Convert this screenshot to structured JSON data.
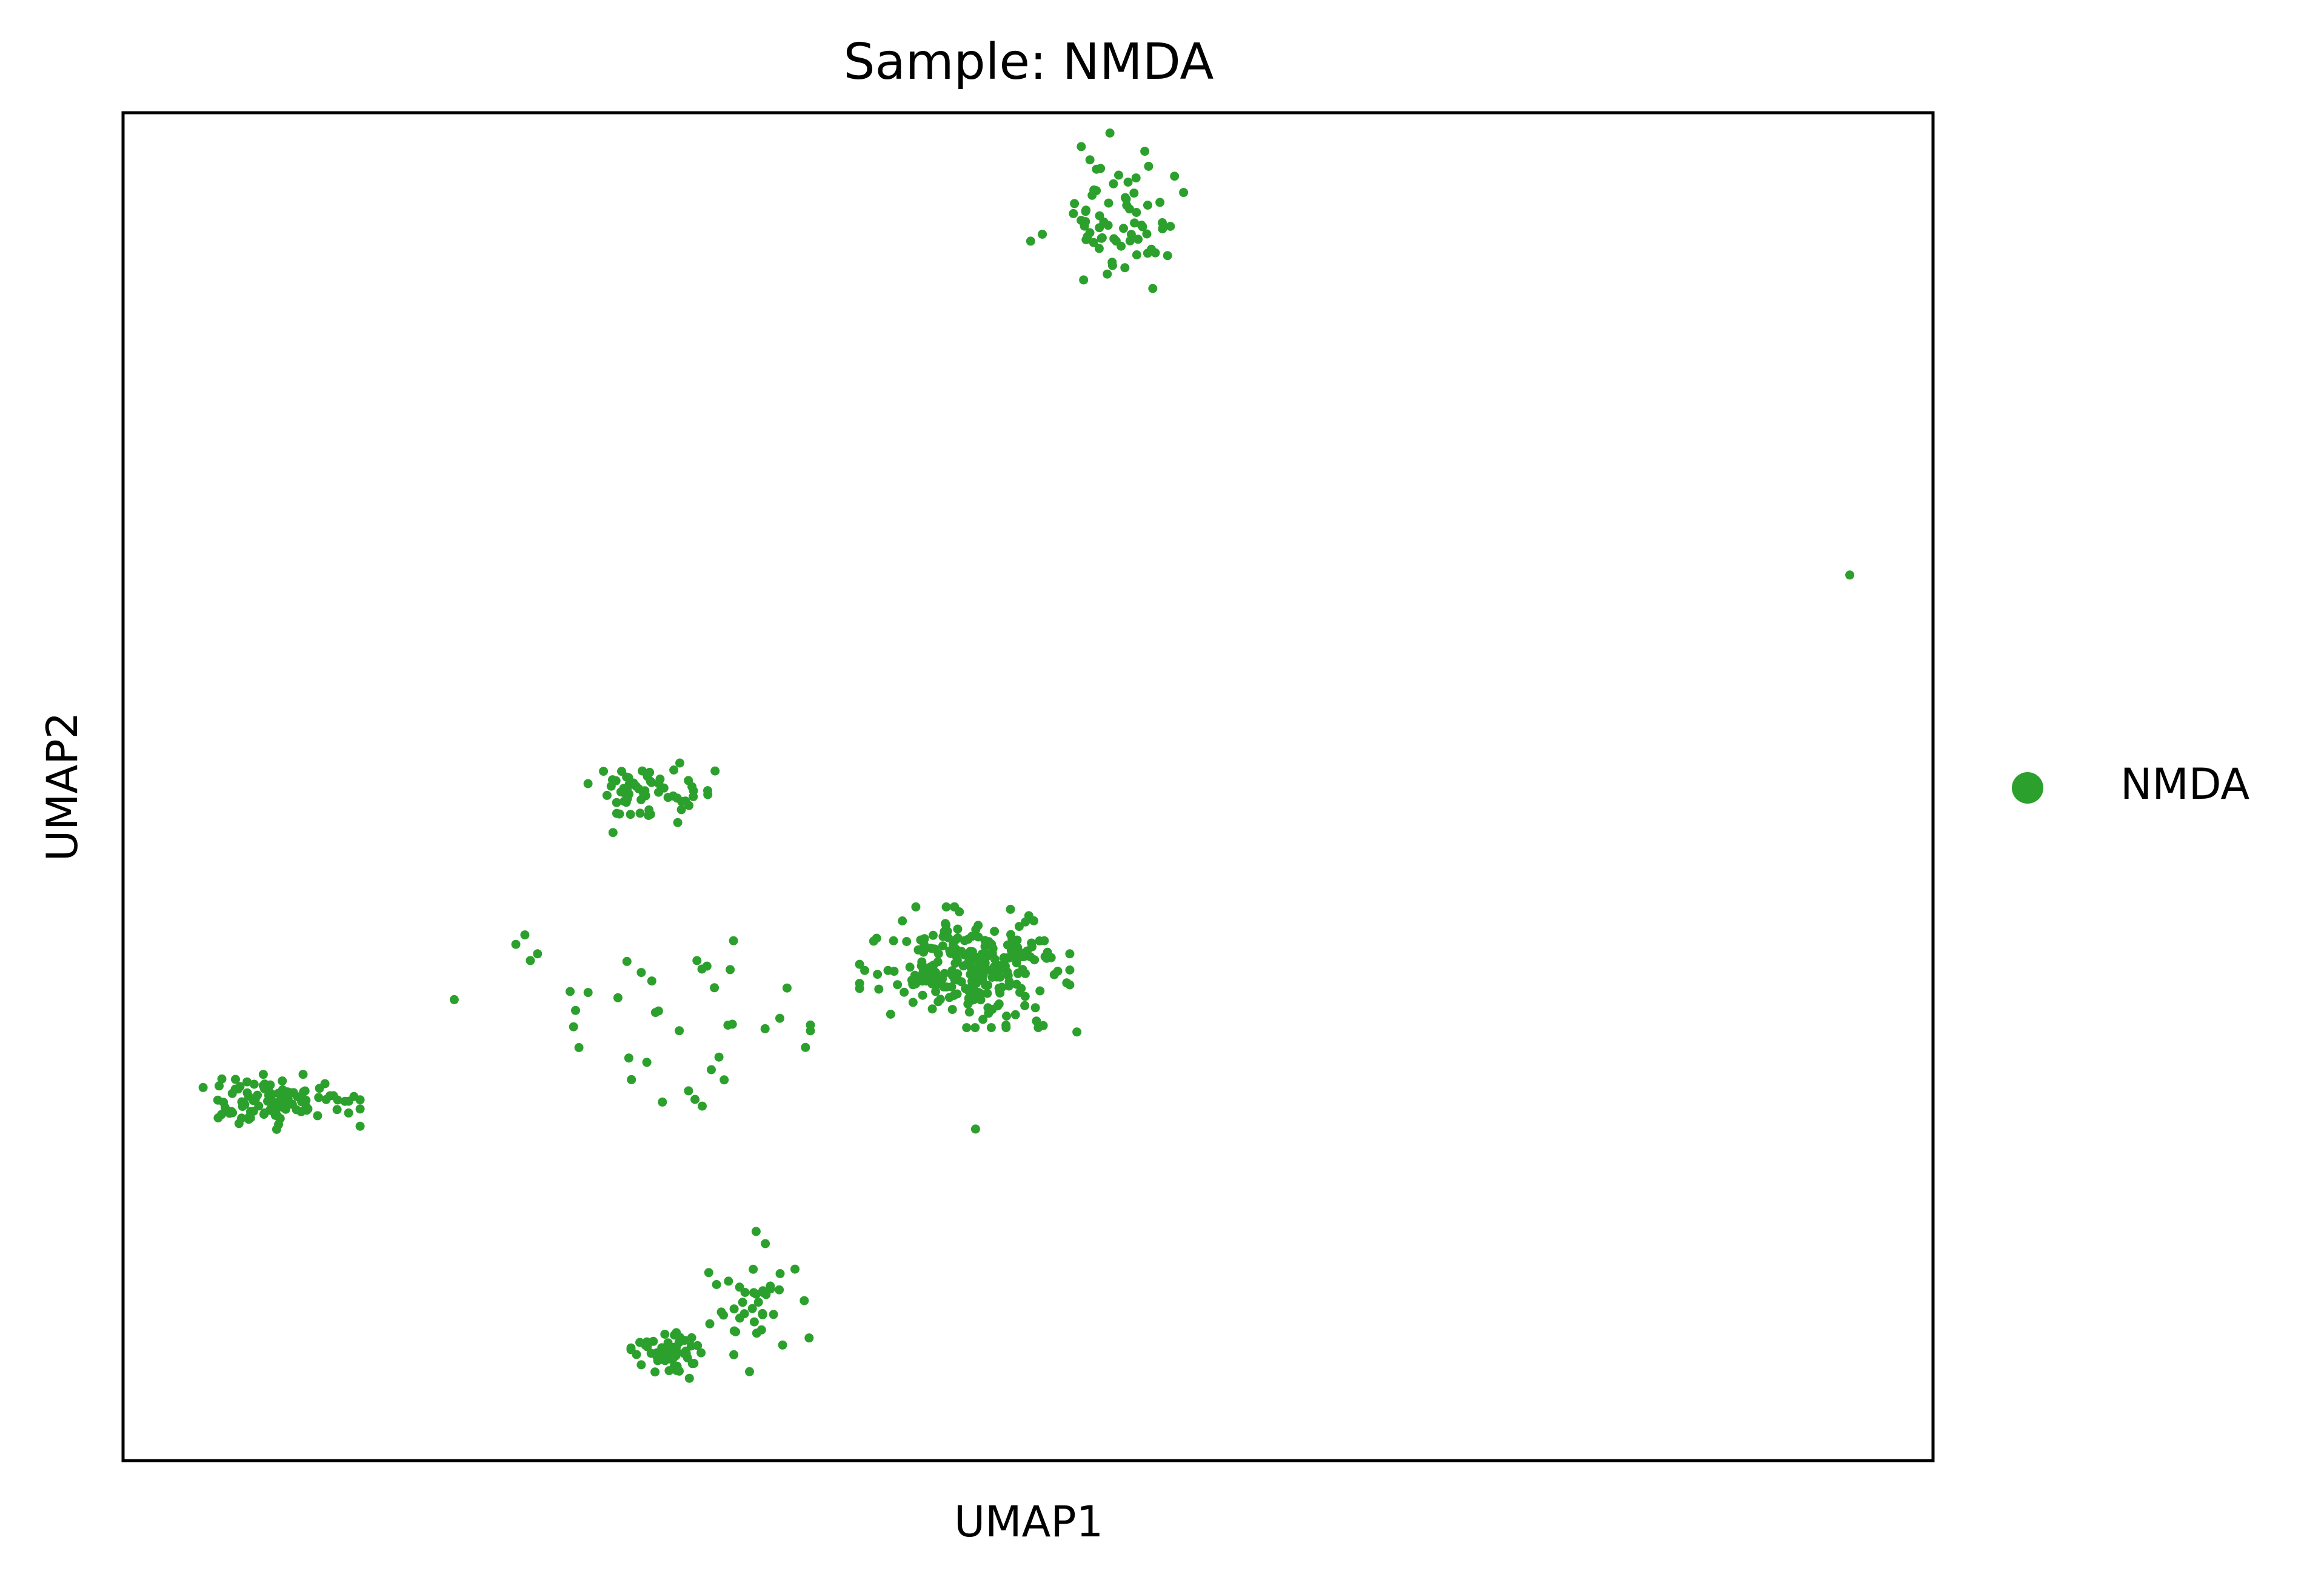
{
  "chart_data": {
    "type": "scatter",
    "title": "Sample: NMDA",
    "xlabel": "UMAP1",
    "ylabel": "UMAP2",
    "xlim": [
      0,
      100
    ],
    "ylim": [
      0,
      100
    ],
    "grid": false,
    "ticks_shown": false,
    "legend_position": "right",
    "series": [
      {
        "name": "NMDA",
        "color": "#2ca02c",
        "clusters": [
          {
            "center": [
              54.5,
              92.2
            ],
            "spread": [
              3.6,
              5.2
            ],
            "count": 70
          },
          {
            "center": [
              46.5,
              36.6
            ],
            "spread": [
              4.8,
              3.7
            ],
            "count": 260
          },
          {
            "center": [
              29.2,
              49.5
            ],
            "spread": [
              2.9,
              2.4
            ],
            "count": 60
          },
          {
            "center": [
              8.5,
              26.6
            ],
            "spread": [
              3.8,
              1.7
            ],
            "count": 100
          },
          {
            "center": [
              30.0,
              7.8
            ],
            "spread": [
              1.6,
              1.4
            ],
            "count": 60
          },
          {
            "center": [
              35.0,
              11.8
            ],
            "spread": [
              2.4,
              4.3
            ],
            "count": 40
          },
          {
            "center": [
              31.2,
              33.0
            ],
            "spread": [
              5.6,
              4.6
            ],
            "count": 30
          }
        ],
        "points": [
          [
            95.4,
            65.7
          ],
          [
            21.7,
            38.3
          ],
          [
            22.5,
            37.1
          ],
          [
            22.2,
            39.0
          ],
          [
            22.9,
            37.6
          ],
          [
            24.7,
            34.8
          ],
          [
            25.0,
            33.4
          ],
          [
            29.8,
            26.6
          ],
          [
            31.6,
            26.8
          ],
          [
            32.0,
            26.3
          ],
          [
            32.5,
            29.0
          ],
          [
            18.3,
            34.2
          ],
          [
            47.1,
            24.6
          ],
          [
            52.7,
            31.8
          ]
        ]
      }
    ]
  }
}
